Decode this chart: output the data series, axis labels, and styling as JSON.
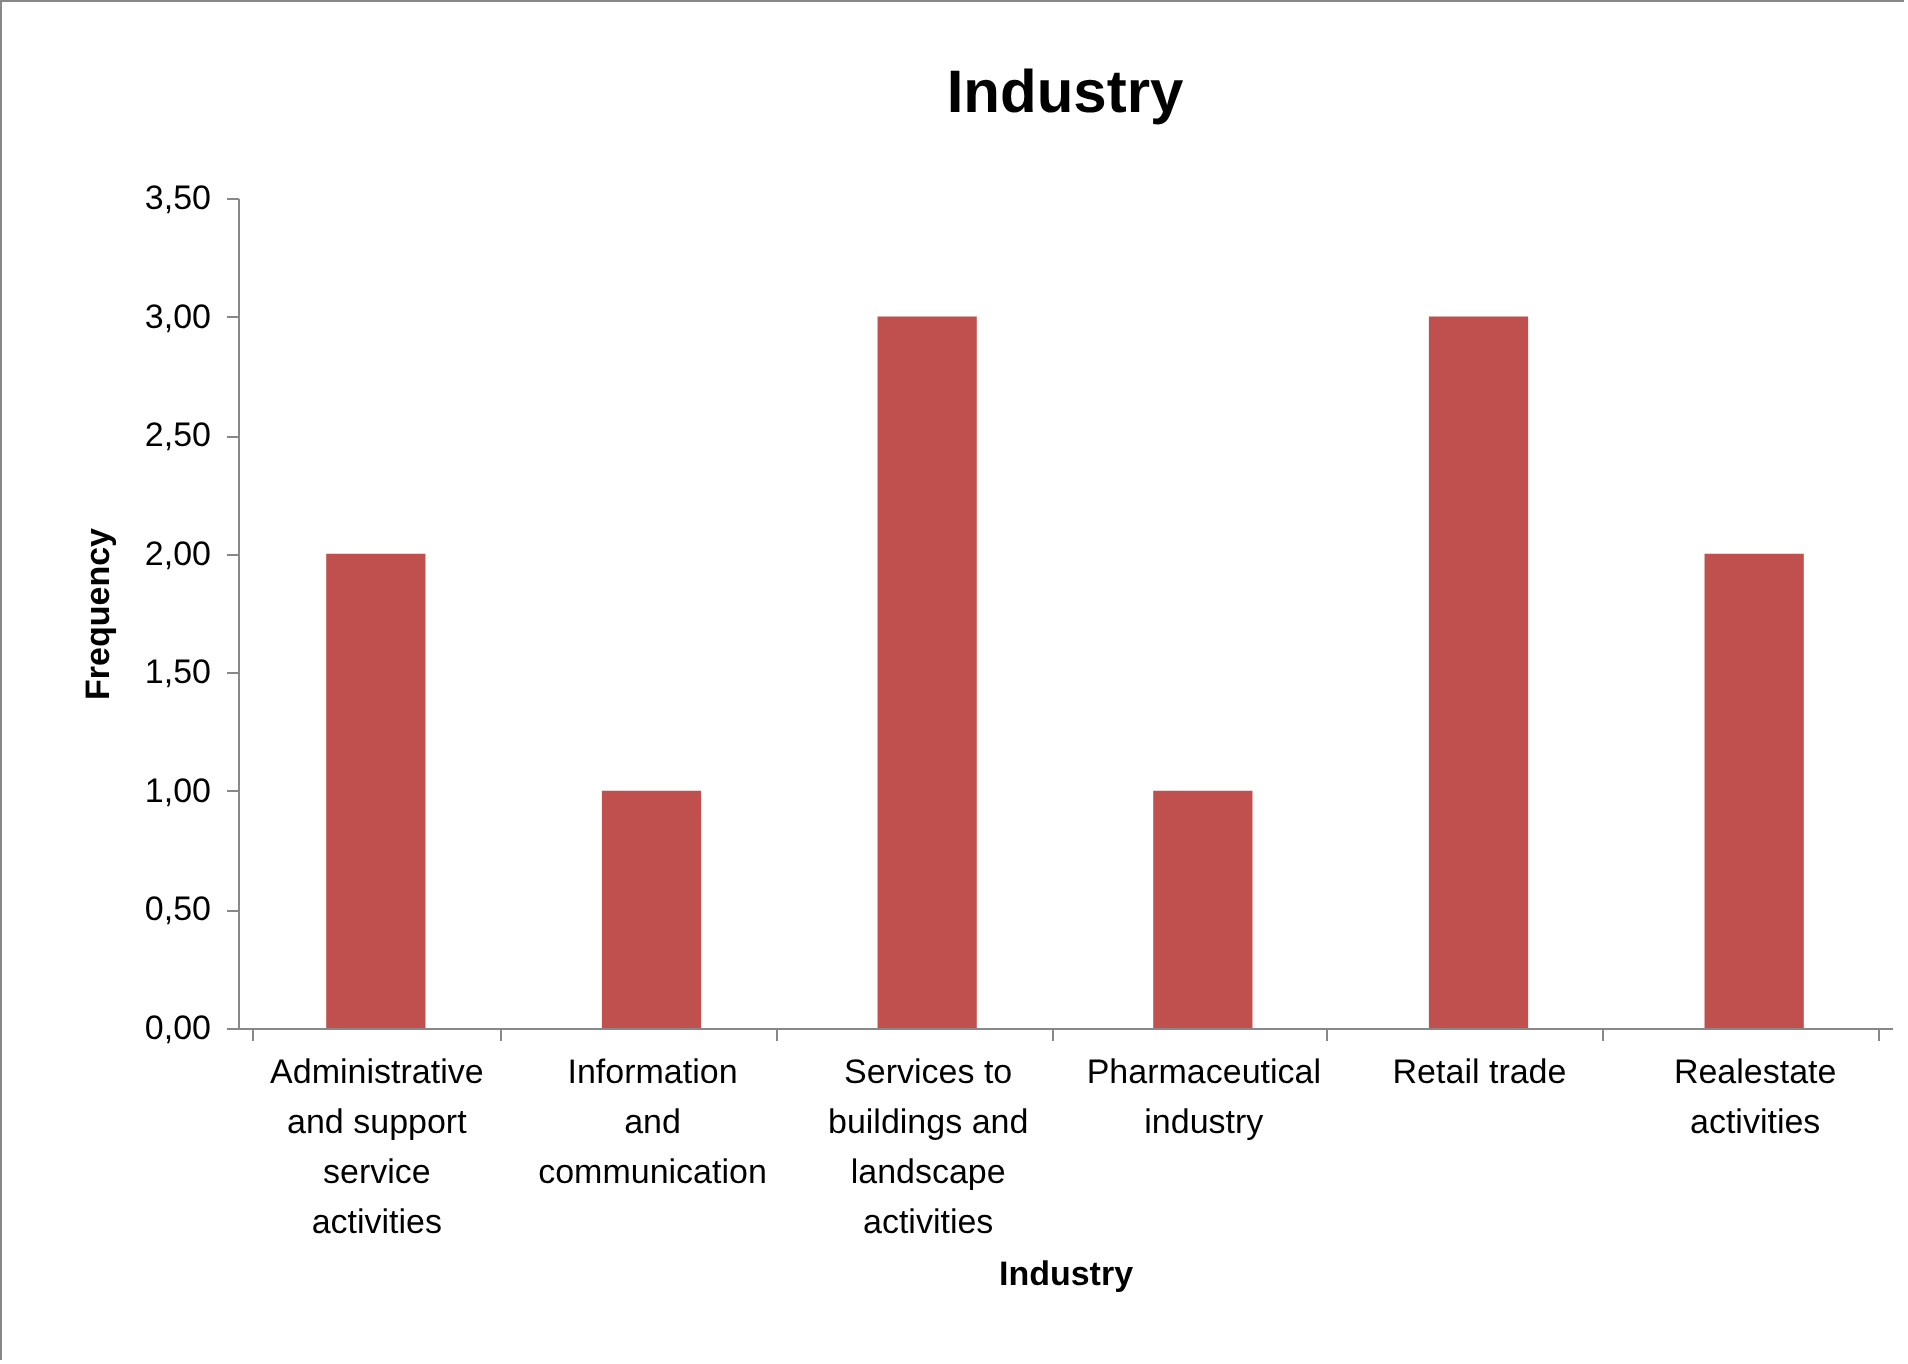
{
  "chart_data": {
    "type": "bar",
    "title": "Industry",
    "xlabel": "Industry",
    "ylabel": "Frequency",
    "categories": [
      "Administrative and support service activities",
      "Information and communication",
      "Services to buildings and landscape activities",
      "Pharmaceutical industry",
      "Retail trade",
      "Realestate activities"
    ],
    "values": [
      2,
      1,
      3,
      1,
      3,
      2
    ],
    "color": "#c0504d",
    "ylim": [
      0,
      3.5
    ],
    "yticks": [
      {
        "value": 0,
        "label": "0,00"
      },
      {
        "value": 0.5,
        "label": "0,50"
      },
      {
        "value": 1,
        "label": "1,00"
      },
      {
        "value": 1.5,
        "label": "1,50"
      },
      {
        "value": 2,
        "label": "2,00"
      },
      {
        "value": 2.5,
        "label": "2,50"
      },
      {
        "value": 3,
        "label": "3,00"
      },
      {
        "value": 3.5,
        "label": "3,50"
      }
    ],
    "grid": false
  }
}
